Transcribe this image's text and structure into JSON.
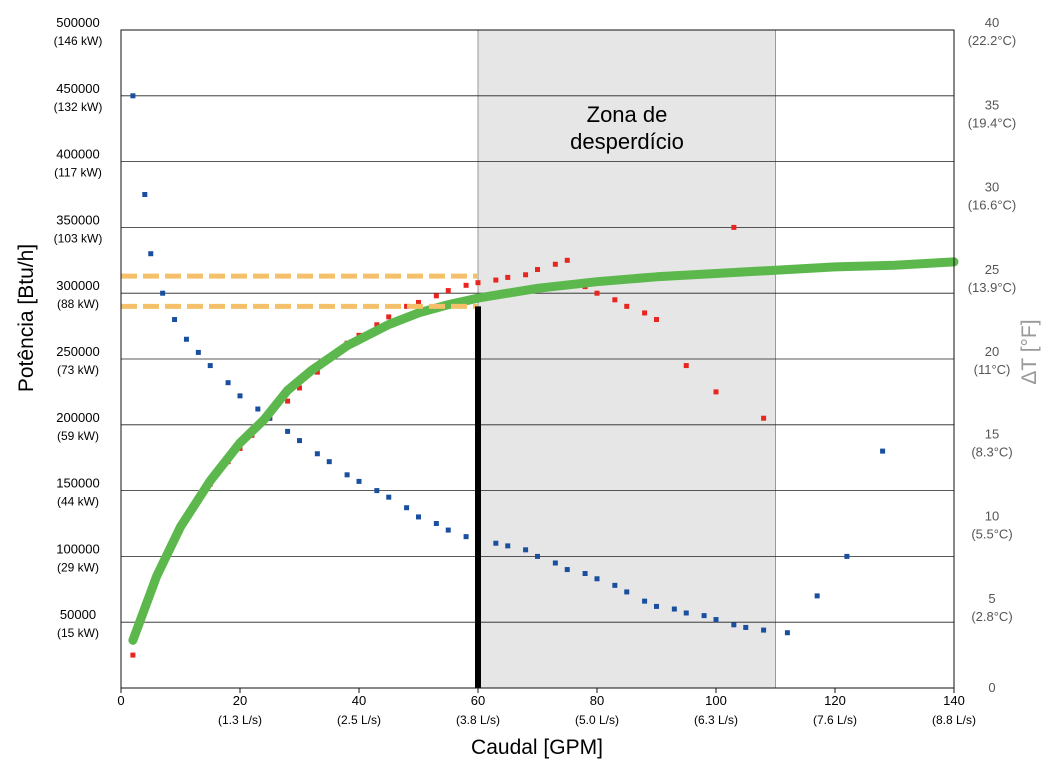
{
  "chart_data": {
    "type": "scatter",
    "xlabel": "Caudal [GPM]",
    "ylabel": "Potência [Btu/h]",
    "y2label": "ΔT [°F]",
    "xlim": [
      0,
      140
    ],
    "ylim": [
      0,
      500000
    ],
    "y2lim": [
      0,
      40
    ],
    "x_ticks": [
      {
        "value": 0,
        "label": "0",
        "sub": ""
      },
      {
        "value": 20,
        "label": "20",
        "sub": "(1.3 L/s)"
      },
      {
        "value": 40,
        "label": "40",
        "sub": "(2.5 L/s)"
      },
      {
        "value": 60,
        "label": "60",
        "sub": "(3.8 L/s)"
      },
      {
        "value": 80,
        "label": "80",
        "sub": "(5.0 L/s)"
      },
      {
        "value": 100,
        "label": "100",
        "sub": "(6.3 L/s)"
      },
      {
        "value": 120,
        "label": "120",
        "sub": "(7.6 L/s)"
      },
      {
        "value": 140,
        "label": "140",
        "sub": "(8.8 L/s)"
      }
    ],
    "y_ticks": [
      {
        "value": 50000,
        "label": "50000",
        "sub": "(15 kW)"
      },
      {
        "value": 100000,
        "label": "100000",
        "sub": "(29 kW)"
      },
      {
        "value": 150000,
        "label": "150000",
        "sub": "(44 kW)"
      },
      {
        "value": 200000,
        "label": "200000",
        "sub": "(59 kW)"
      },
      {
        "value": 250000,
        "label": "250000",
        "sub": "(73 kW)"
      },
      {
        "value": 300000,
        "label": "300000",
        "sub": "(88 kW)"
      },
      {
        "value": 350000,
        "label": "350000",
        "sub": "(103 kW)"
      },
      {
        "value": 400000,
        "label": "400000",
        "sub": "(117 kW)"
      },
      {
        "value": 450000,
        "label": "450000",
        "sub": "(132 kW)"
      },
      {
        "value": 500000,
        "label": "500000",
        "sub": "(146 kW)"
      }
    ],
    "y2_ticks": [
      {
        "value": 0,
        "label": "0",
        "sub": ""
      },
      {
        "value": 5,
        "label": "5",
        "sub": "(2.8°C)"
      },
      {
        "value": 10,
        "label": "10",
        "sub": "(5.5°C)"
      },
      {
        "value": 15,
        "label": "15",
        "sub": "(8.3°C)"
      },
      {
        "value": 20,
        "label": "20",
        "sub": "(11°C)"
      },
      {
        "value": 25,
        "label": "25",
        "sub": "(13.9°C)"
      },
      {
        "value": 30,
        "label": "30",
        "sub": "(16.6°C)"
      },
      {
        "value": 35,
        "label": "35",
        "sub": "(19.4°C)"
      },
      {
        "value": 40,
        "label": "40",
        "sub": "(22.2°C)"
      }
    ],
    "grid": "horizontal",
    "waste_zone": {
      "label_line1": "Zona de",
      "label_line2": "desperdício",
      "x_range": [
        60,
        110
      ],
      "color": "#e6e6e6"
    },
    "reference_lines": {
      "vertical_x": 60,
      "vertical_to_y": 290000,
      "horizontal_dashed_y": [
        313000,
        290000
      ],
      "dashed_color": "#f5c06a",
      "vertical_color": "#000000"
    },
    "series": [
      {
        "axis": "left",
        "color": "#e8251e",
        "marker": "square",
        "points": [
          [
            2,
            25000
          ],
          [
            4,
            60000
          ],
          [
            6,
            85000
          ],
          [
            8,
            105000
          ],
          [
            10,
            120000
          ],
          [
            12,
            138000
          ],
          [
            15,
            155000
          ],
          [
            18,
            172000
          ],
          [
            20,
            182000
          ],
          [
            22,
            192000
          ],
          [
            25,
            205000
          ],
          [
            28,
            218000
          ],
          [
            30,
            228000
          ],
          [
            33,
            240000
          ],
          [
            35,
            250000
          ],
          [
            38,
            262000
          ],
          [
            40,
            268000
          ],
          [
            43,
            276000
          ],
          [
            45,
            282000
          ],
          [
            48,
            290000
          ],
          [
            50,
            293000
          ],
          [
            53,
            298000
          ],
          [
            55,
            302000
          ],
          [
            58,
            306000
          ],
          [
            60,
            308000
          ],
          [
            63,
            310000
          ],
          [
            65,
            312000
          ],
          [
            68,
            314000
          ],
          [
            70,
            318000
          ],
          [
            73,
            322000
          ],
          [
            75,
            325000
          ],
          [
            78,
            305000
          ],
          [
            80,
            300000
          ],
          [
            83,
            295000
          ],
          [
            85,
            290000
          ],
          [
            88,
            285000
          ],
          [
            90,
            280000
          ],
          [
            95,
            245000
          ],
          [
            100,
            225000
          ],
          [
            103,
            350000
          ],
          [
            108,
            205000
          ]
        ]
      },
      {
        "axis": "left",
        "color": "#1a4fa0",
        "marker": "square",
        "points": [
          [
            2,
            450000
          ],
          [
            4,
            375000
          ],
          [
            5,
            330000
          ],
          [
            7,
            300000
          ],
          [
            9,
            280000
          ],
          [
            11,
            265000
          ],
          [
            13,
            255000
          ],
          [
            15,
            245000
          ],
          [
            18,
            232000
          ],
          [
            20,
            222000
          ],
          [
            23,
            212000
          ],
          [
            25,
            205000
          ],
          [
            28,
            195000
          ],
          [
            30,
            188000
          ],
          [
            33,
            178000
          ],
          [
            35,
            172000
          ],
          [
            38,
            162000
          ],
          [
            40,
            157000
          ],
          [
            43,
            150000
          ],
          [
            45,
            145000
          ],
          [
            48,
            137000
          ],
          [
            50,
            130000
          ],
          [
            53,
            125000
          ],
          [
            55,
            120000
          ],
          [
            58,
            115000
          ],
          [
            60,
            113000
          ],
          [
            63,
            110000
          ],
          [
            65,
            108000
          ],
          [
            68,
            105000
          ],
          [
            70,
            100000
          ],
          [
            73,
            95000
          ],
          [
            75,
            90000
          ],
          [
            78,
            87000
          ],
          [
            80,
            83000
          ],
          [
            83,
            78000
          ],
          [
            85,
            73000
          ],
          [
            88,
            66000
          ],
          [
            90,
            62000
          ],
          [
            93,
            60000
          ],
          [
            95,
            57000
          ],
          [
            98,
            55000
          ],
          [
            100,
            52000
          ],
          [
            103,
            48000
          ],
          [
            105,
            46000
          ],
          [
            108,
            44000
          ],
          [
            112,
            42000
          ],
          [
            117,
            70000
          ],
          [
            122,
            100000
          ],
          [
            128,
            180000
          ]
        ]
      },
      {
        "axis": "right",
        "color": "#5cb84c",
        "marker": "line",
        "points": [
          [
            2,
            2.9
          ],
          [
            6,
            6.8
          ],
          [
            10,
            9.8
          ],
          [
            15,
            12.6
          ],
          [
            20,
            14.9
          ],
          [
            22,
            15.6
          ],
          [
            24,
            16.3
          ],
          [
            28,
            18.1
          ],
          [
            32,
            19.3
          ],
          [
            38,
            20.8
          ],
          [
            45,
            22.1
          ],
          [
            50,
            22.8
          ],
          [
            55,
            23.3
          ],
          [
            60,
            23.7
          ],
          [
            70,
            24.3
          ],
          [
            80,
            24.7
          ],
          [
            90,
            25.0
          ],
          [
            100,
            25.2
          ],
          [
            110,
            25.4
          ],
          [
            120,
            25.6
          ],
          [
            130,
            25.7
          ],
          [
            140,
            25.9
          ]
        ]
      }
    ]
  }
}
